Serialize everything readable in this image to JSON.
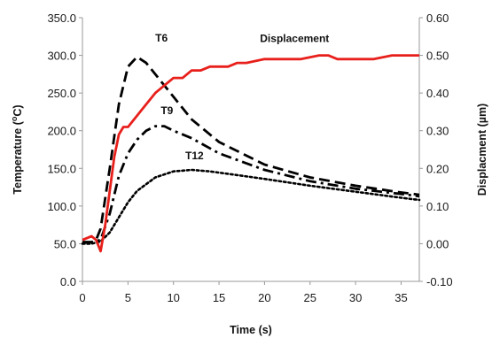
{
  "chart_data": {
    "type": "line",
    "title": "",
    "xlabel": "Time (s)",
    "ylabel_left": "Temperature (",
    "ylabel_left_sup": "o",
    "ylabel_left_unit": "C)",
    "ylabel_right": "Displacment  (µm)",
    "xlim": [
      0,
      37
    ],
    "ylim_left": [
      0,
      350
    ],
    "ylim_right": [
      -0.1,
      0.6
    ],
    "x_ticks": [
      "0",
      "5",
      "10",
      "15",
      "20",
      "25",
      "30",
      "35"
    ],
    "y_left_ticks": [
      "0.0",
      "50.0",
      "100.0",
      "150.0",
      "200.0",
      "250.0",
      "300.0",
      "350.0"
    ],
    "y_right_ticks": [
      "-0.10",
      "0.00",
      "0.10",
      "0.20",
      "0.30",
      "0.40",
      "0.50",
      "0.60"
    ],
    "grid": false,
    "legend": "inline labels",
    "series": [
      {
        "name": "T6",
        "axis": "left",
        "color": "#000000",
        "style": "dashed",
        "x": [
          0,
          1,
          1.5,
          2,
          3,
          4,
          5,
          6,
          7,
          8,
          10,
          12,
          15,
          20,
          25,
          30,
          35,
          37
        ],
        "y": [
          52,
          52,
          55,
          70,
          150,
          235,
          285,
          298,
          290,
          275,
          245,
          215,
          185,
          155,
          138,
          127,
          118,
          115
        ]
      },
      {
        "name": "T9",
        "axis": "left",
        "color": "#000000",
        "style": "dashdot",
        "x": [
          0,
          1,
          2,
          3,
          4,
          5,
          6,
          7,
          8,
          9,
          10,
          12,
          15,
          20,
          25,
          30,
          35,
          37
        ],
        "y": [
          52,
          52,
          55,
          90,
          140,
          170,
          188,
          200,
          206,
          206,
          200,
          190,
          170,
          148,
          133,
          123,
          116,
          113
        ]
      },
      {
        "name": "T12",
        "axis": "left",
        "color": "#000000",
        "style": "dotted",
        "x": [
          0,
          1,
          2,
          3,
          4,
          5,
          6,
          8,
          10,
          12,
          14,
          17,
          20,
          25,
          30,
          35,
          37
        ],
        "y": [
          50,
          50,
          53,
          65,
          85,
          105,
          120,
          138,
          146,
          148,
          146,
          141,
          136,
          127,
          119,
          111,
          108
        ]
      },
      {
        "name": "Displacement",
        "axis": "right",
        "color": "#e8201c",
        "style": "solid",
        "x": [
          0,
          1,
          1.5,
          2,
          2.5,
          3,
          3.5,
          4,
          4.5,
          5,
          6,
          7,
          8,
          9,
          10,
          11,
          12,
          13,
          14,
          15,
          16,
          17,
          18,
          20,
          22,
          24,
          26,
          27,
          28,
          29,
          30,
          32,
          34,
          36,
          37
        ],
        "y": [
          0.01,
          0.02,
          0.01,
          -0.02,
          0.05,
          0.14,
          0.23,
          0.29,
          0.31,
          0.31,
          0.34,
          0.37,
          0.4,
          0.42,
          0.44,
          0.44,
          0.46,
          0.46,
          0.47,
          0.47,
          0.47,
          0.48,
          0.48,
          0.49,
          0.49,
          0.49,
          0.5,
          0.5,
          0.49,
          0.49,
          0.49,
          0.49,
          0.5,
          0.5,
          0.5
        ]
      }
    ]
  }
}
